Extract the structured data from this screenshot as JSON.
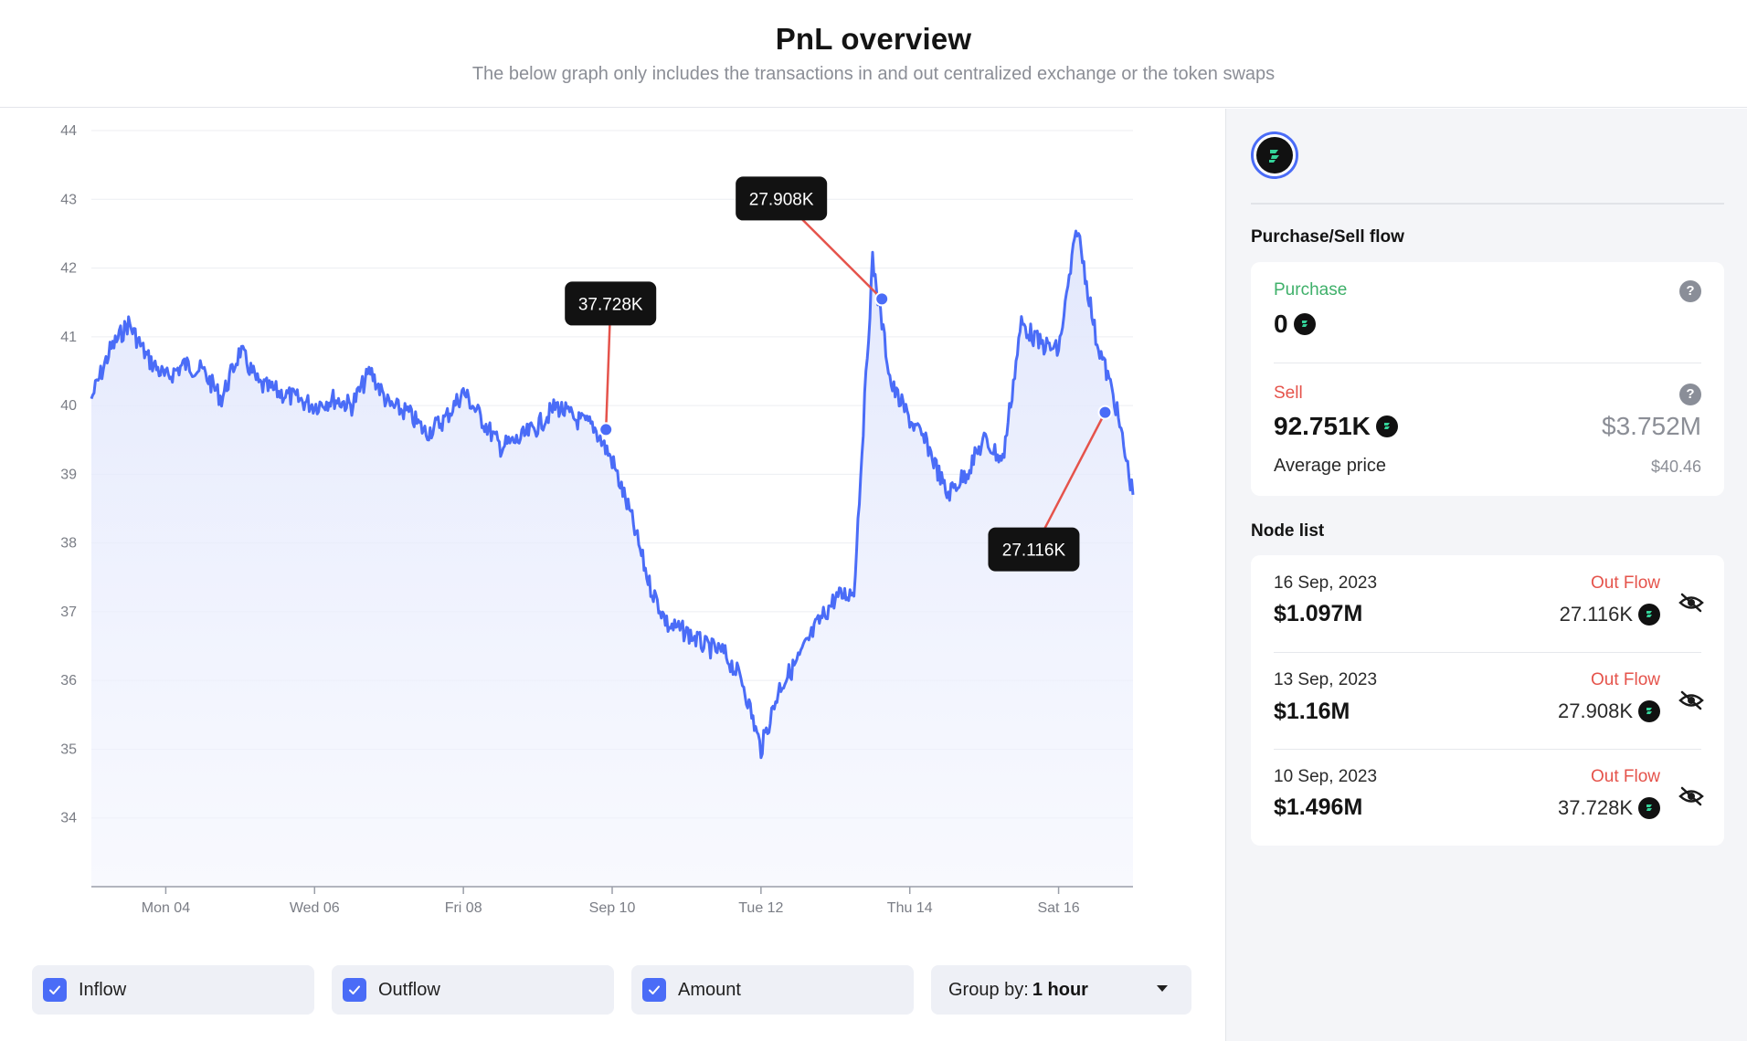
{
  "header": {
    "title": "PnL overview",
    "subtitle": "The below graph only includes the transactions in and out centralized exchange or the token swaps"
  },
  "colors": {
    "accent": "#4a6cf7",
    "line": "#4a6cf7",
    "fill_top": "#e3e8fd",
    "callout_line": "#e5534b",
    "purchase": "#3fb06a",
    "sell": "#e5534b"
  },
  "chart_data": {
    "type": "line",
    "xlabel": "",
    "ylabel": "",
    "ylim": [
      33,
      44
    ],
    "yticks": [
      34,
      35,
      36,
      37,
      38,
      39,
      40,
      41,
      42,
      43,
      44
    ],
    "xlim": [
      "2023-09-03",
      "2023-09-17"
    ],
    "xticks": [
      {
        "date": "2023-09-04",
        "label": "Mon 04"
      },
      {
        "date": "2023-09-06",
        "label": "Wed 06"
      },
      {
        "date": "2023-09-08",
        "label": "Fri 08"
      },
      {
        "date": "2023-09-10",
        "label": "Sep 10"
      },
      {
        "date": "2023-09-12",
        "label": "Tue 12"
      },
      {
        "date": "2023-09-14",
        "label": "Thu 14"
      },
      {
        "date": "2023-09-16",
        "label": "Sat 16"
      }
    ],
    "grid": true,
    "series": [
      {
        "points": [
          [
            "2023-09-03 00:00",
            40.1
          ],
          [
            "2023-09-03 06:00",
            40.8
          ],
          [
            "2023-09-03 12:00",
            41.2
          ],
          [
            "2023-09-03 18:00",
            40.7
          ],
          [
            "2023-09-04 00:00",
            40.4
          ],
          [
            "2023-09-04 06:00",
            40.6
          ],
          [
            "2023-09-04 12:00",
            40.5
          ],
          [
            "2023-09-04 18:00",
            40.1
          ],
          [
            "2023-09-05 00:00",
            40.8
          ],
          [
            "2023-09-05 06:00",
            40.3
          ],
          [
            "2023-09-05 12:00",
            40.2
          ],
          [
            "2023-09-05 18:00",
            40.1
          ],
          [
            "2023-09-06 00:00",
            40.0
          ],
          [
            "2023-09-06 06:00",
            40.1
          ],
          [
            "2023-09-06 12:00",
            40.0
          ],
          [
            "2023-09-06 18:00",
            40.5
          ],
          [
            "2023-09-07 00:00",
            40.0
          ],
          [
            "2023-09-07 06:00",
            39.9
          ],
          [
            "2023-09-07 12:00",
            39.6
          ],
          [
            "2023-09-07 18:00",
            39.8
          ],
          [
            "2023-09-08 00:00",
            40.2
          ],
          [
            "2023-09-08 06:00",
            39.8
          ],
          [
            "2023-09-08 12:00",
            39.4
          ],
          [
            "2023-09-08 18:00",
            39.5
          ],
          [
            "2023-09-09 00:00",
            39.7
          ],
          [
            "2023-09-09 06:00",
            40.0
          ],
          [
            "2023-09-09 12:00",
            39.8
          ],
          [
            "2023-09-09 18:00",
            39.7
          ],
          [
            "2023-09-10 00:00",
            39.2
          ],
          [
            "2023-09-10 06:00",
            38.4
          ],
          [
            "2023-09-10 12:00",
            37.4
          ],
          [
            "2023-09-10 18:00",
            36.8
          ],
          [
            "2023-09-11 00:00",
            36.7
          ],
          [
            "2023-09-11 06:00",
            36.5
          ],
          [
            "2023-09-11 12:00",
            36.4
          ],
          [
            "2023-09-11 18:00",
            36.0
          ],
          [
            "2023-09-12 00:00",
            35.0
          ],
          [
            "2023-09-12 06:00",
            35.9
          ],
          [
            "2023-09-12 12:00",
            36.3
          ],
          [
            "2023-09-12 18:00",
            36.8
          ],
          [
            "2023-09-13 00:00",
            37.2
          ],
          [
            "2023-09-13 06:00",
            37.3
          ],
          [
            "2023-09-13 12:00",
            42.1
          ],
          [
            "2023-09-13 18:00",
            40.3
          ],
          [
            "2023-09-14 00:00",
            39.8
          ],
          [
            "2023-09-14 06:00",
            39.4
          ],
          [
            "2023-09-14 12:00",
            38.7
          ],
          [
            "2023-09-14 18:00",
            39.0
          ],
          [
            "2023-09-15 00:00",
            39.5
          ],
          [
            "2023-09-15 06:00",
            39.2
          ],
          [
            "2023-09-15 12:00",
            41.2
          ],
          [
            "2023-09-15 18:00",
            40.9
          ],
          [
            "2023-09-16 00:00",
            40.8
          ],
          [
            "2023-09-16 06:00",
            42.6
          ],
          [
            "2023-09-16 12:00",
            41.0
          ],
          [
            "2023-09-16 18:00",
            40.1
          ],
          [
            "2023-09-17 00:00",
            38.7
          ]
        ]
      }
    ],
    "annotations": [
      {
        "label": "37.728K",
        "date": "2023-09-09 22:00",
        "value": 39.65
      },
      {
        "label": "27.908K",
        "date": "2023-09-13 15:00",
        "value": 41.55
      },
      {
        "label": "27.116K",
        "date": "2023-09-16 15:00",
        "value": 39.9
      }
    ]
  },
  "controls": {
    "inflow_label": "Inflow",
    "outflow_label": "Outflow",
    "amount_label": "Amount",
    "group_by_label": "Group by:",
    "group_by_value": "1 hour"
  },
  "sidebar": {
    "purchase_sell_title": "Purchase/Sell flow",
    "purchase": {
      "label": "Purchase",
      "amount": "0",
      "help": "?"
    },
    "sell": {
      "label": "Sell",
      "amount": "92.751K",
      "usd": "$3.752M",
      "help": "?",
      "avg_label": "Average price",
      "avg_value": "$40.46"
    },
    "node_list_title": "Node list",
    "nodes": [
      {
        "date": "16 Sep, 2023",
        "usd": "$1.097M",
        "flow": "Out Flow",
        "amount": "27.116K"
      },
      {
        "date": "13 Sep, 2023",
        "usd": "$1.16M",
        "flow": "Out Flow",
        "amount": "27.908K"
      },
      {
        "date": "10 Sep, 2023",
        "usd": "$1.496M",
        "flow": "Out Flow",
        "amount": "37.728K"
      }
    ]
  }
}
